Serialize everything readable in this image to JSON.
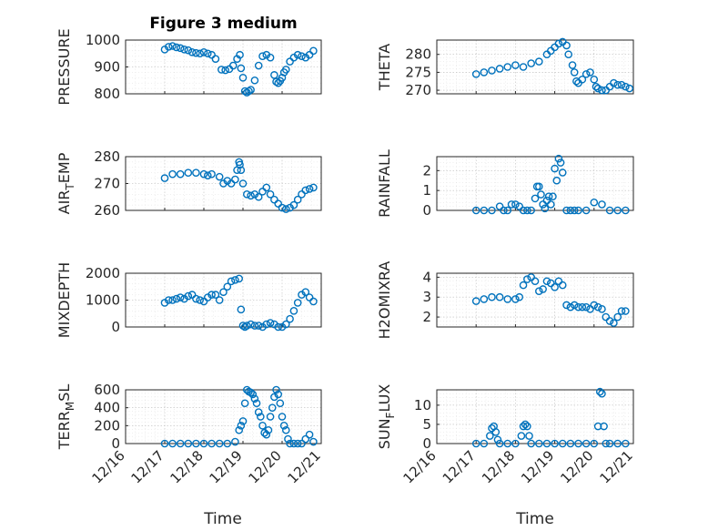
{
  "chart_data": [
    {
      "type": "scatter",
      "title": "Figure 3 medium",
      "ylabel": "PRESSURE",
      "ylim": [
        800,
        1000
      ],
      "yticks": [
        "800",
        "900",
        "1000"
      ],
      "xlim": [
        "12/16",
        "12/21"
      ],
      "x": [
        17.0,
        17.1,
        17.2,
        17.3,
        17.4,
        17.5,
        17.6,
        17.7,
        17.8,
        17.9,
        18.0,
        18.1,
        18.2,
        18.3,
        18.45,
        18.55,
        18.65,
        18.75,
        18.85,
        18.92,
        18.95,
        19.0,
        19.05,
        19.1,
        19.15,
        19.2,
        19.3,
        19.4,
        19.5,
        19.6,
        19.7,
        19.8,
        19.85,
        19.9,
        19.95,
        20.0,
        20.05,
        20.1,
        20.2,
        20.3,
        20.4,
        20.5,
        20.6,
        20.7,
        20.8
      ],
      "y": [
        965,
        975,
        978,
        973,
        970,
        965,
        962,
        955,
        952,
        950,
        955,
        950,
        945,
        930,
        890,
        888,
        892,
        905,
        930,
        945,
        895,
        860,
        810,
        805,
        810,
        815,
        850,
        905,
        940,
        945,
        935,
        870,
        845,
        840,
        848,
        860,
        880,
        890,
        920,
        935,
        945,
        940,
        935,
        945,
        960
      ]
    },
    {
      "type": "scatter",
      "ylabel": "THETA",
      "ylim": [
        269,
        284
      ],
      "yticks": [
        "270",
        "275",
        "280"
      ],
      "xlim": [
        "12/16",
        "12/21"
      ],
      "x": [
        17.0,
        17.2,
        17.4,
        17.6,
        17.8,
        18.0,
        18.2,
        18.4,
        18.6,
        18.8,
        18.9,
        19.0,
        19.1,
        19.2,
        19.3,
        19.35,
        19.45,
        19.5,
        19.55,
        19.6,
        19.7,
        19.8,
        19.9,
        20.0,
        20.05,
        20.1,
        20.2,
        20.3,
        20.4,
        20.5,
        20.6,
        20.7,
        20.8,
        20.9
      ],
      "y": [
        274.5,
        275,
        275.5,
        276,
        276.5,
        277,
        276.5,
        277.5,
        278,
        280,
        281,
        282,
        283,
        283.5,
        282.5,
        280,
        277,
        275,
        272.5,
        272,
        273,
        274.5,
        275,
        273,
        271,
        270.5,
        270,
        270,
        271,
        272,
        271.5,
        271.5,
        271,
        270.5
      ]
    },
    {
      "type": "scatter",
      "ylabel": "AIR_TEMP",
      "ylim": [
        260,
        280
      ],
      "yticks": [
        "260",
        "270",
        "280"
      ],
      "xlim": [
        "12/16",
        "12/21"
      ],
      "x": [
        17.0,
        17.2,
        17.4,
        17.6,
        17.8,
        18.0,
        18.1,
        18.2,
        18.4,
        18.5,
        18.6,
        18.7,
        18.8,
        18.85,
        18.9,
        18.92,
        18.95,
        19.0,
        19.1,
        19.2,
        19.3,
        19.4,
        19.5,
        19.6,
        19.7,
        19.8,
        19.9,
        20.0,
        20.1,
        20.2,
        20.3,
        20.4,
        20.5,
        20.6,
        20.7,
        20.8
      ],
      "y": [
        272,
        273.5,
        273.5,
        274,
        274,
        273.5,
        273,
        273.5,
        272.5,
        270,
        271,
        270,
        271.5,
        275,
        278,
        277,
        275,
        270,
        266,
        265.5,
        266,
        265,
        267,
        268.5,
        266,
        264,
        262.5,
        261,
        260.5,
        261,
        262,
        264,
        266,
        267.5,
        268,
        268.5
      ]
    },
    {
      "type": "scatter",
      "ylabel": "RAINFALL",
      "ylim": [
        0,
        2.7
      ],
      "yticks": [
        "0",
        "1",
        "2"
      ],
      "xlim": [
        "12/16",
        "12/21"
      ],
      "x": [
        17.0,
        17.2,
        17.4,
        17.6,
        17.7,
        17.8,
        17.9,
        18.0,
        18.1,
        18.2,
        18.3,
        18.4,
        18.5,
        18.55,
        18.6,
        18.65,
        18.7,
        18.75,
        18.8,
        18.85,
        18.9,
        18.95,
        19.0,
        19.05,
        19.1,
        19.15,
        19.2,
        19.3,
        19.4,
        19.5,
        19.6,
        19.8,
        20.0,
        20.2,
        20.4,
        20.6,
        20.8
      ],
      "y": [
        0,
        0,
        0,
        0.2,
        0,
        0,
        0.3,
        0.3,
        0.2,
        0,
        0,
        0,
        0.6,
        1.2,
        1.2,
        0.8,
        0.3,
        0.1,
        0.5,
        0.7,
        0.3,
        0.7,
        2.1,
        1.5,
        2.6,
        2.4,
        1.9,
        0,
        0,
        0,
        0,
        0,
        0.4,
        0.3,
        0,
        0,
        0
      ]
    },
    {
      "type": "scatter",
      "ylabel": "MIXDEPTH",
      "ylim": [
        0,
        2000
      ],
      "yticks": [
        "0",
        "1000",
        "2000"
      ],
      "xlim": [
        "12/16",
        "12/21"
      ],
      "x": [
        17.0,
        17.1,
        17.2,
        17.3,
        17.4,
        17.5,
        17.6,
        17.7,
        17.8,
        17.9,
        18.0,
        18.1,
        18.2,
        18.3,
        18.4,
        18.5,
        18.6,
        18.7,
        18.8,
        18.9,
        18.95,
        19.0,
        19.05,
        19.1,
        19.2,
        19.3,
        19.4,
        19.5,
        19.6,
        19.7,
        19.8,
        19.9,
        20.0,
        20.1,
        20.2,
        20.3,
        20.4,
        20.5,
        20.6,
        20.7,
        20.8
      ],
      "y": [
        900,
        1000,
        1000,
        1050,
        1100,
        1050,
        1150,
        1200,
        1050,
        1000,
        950,
        1100,
        1200,
        1200,
        1000,
        1300,
        1500,
        1700,
        1750,
        1800,
        650,
        50,
        0,
        50,
        100,
        50,
        50,
        0,
        100,
        150,
        100,
        0,
        0,
        100,
        300,
        600,
        900,
        1200,
        1300,
        1100,
        950
      ]
    },
    {
      "type": "scatter",
      "ylabel": "H2OMIXRA",
      "ylim": [
        1.5,
        4.2
      ],
      "yticks": [
        "2",
        "3",
        "4"
      ],
      "xlim": [
        "12/16",
        "12/21"
      ],
      "x": [
        17.0,
        17.2,
        17.4,
        17.6,
        17.8,
        18.0,
        18.1,
        18.2,
        18.3,
        18.4,
        18.5,
        18.6,
        18.7,
        18.8,
        18.9,
        19.0,
        19.1,
        19.2,
        19.3,
        19.4,
        19.5,
        19.6,
        19.7,
        19.8,
        19.9,
        20.0,
        20.1,
        20.2,
        20.3,
        20.4,
        20.5,
        20.6,
        20.7,
        20.8
      ],
      "y": [
        2.8,
        2.9,
        3.0,
        3.0,
        2.9,
        2.9,
        3.0,
        3.6,
        3.9,
        4.0,
        3.8,
        3.3,
        3.4,
        3.8,
        3.7,
        3.5,
        3.8,
        3.6,
        2.6,
        2.5,
        2.6,
        2.5,
        2.5,
        2.5,
        2.4,
        2.6,
        2.5,
        2.4,
        2.0,
        1.8,
        1.7,
        2.0,
        2.3,
        2.3
      ]
    },
    {
      "type": "scatter",
      "ylabel": "TERR_MSL",
      "ylim": [
        0,
        600
      ],
      "yticks": [
        "0",
        "200",
        "400",
        "600"
      ],
      "xlim": [
        "12/16",
        "12/21"
      ],
      "x": [
        17.0,
        17.2,
        17.4,
        17.6,
        17.8,
        18.0,
        18.2,
        18.4,
        18.6,
        18.8,
        18.9,
        18.95,
        19.0,
        19.05,
        19.1,
        19.15,
        19.2,
        19.25,
        19.3,
        19.35,
        19.4,
        19.45,
        19.5,
        19.55,
        19.6,
        19.65,
        19.7,
        19.75,
        19.8,
        19.85,
        19.9,
        19.95,
        20.0,
        20.05,
        20.1,
        20.15,
        20.2,
        20.3,
        20.4,
        20.5,
        20.6,
        20.7,
        20.8
      ],
      "y": [
        0,
        0,
        0,
        0,
        0,
        0,
        0,
        0,
        0,
        20,
        150,
        200,
        250,
        450,
        600,
        580,
        570,
        550,
        500,
        450,
        350,
        300,
        200,
        120,
        100,
        150,
        300,
        400,
        520,
        600,
        550,
        450,
        300,
        200,
        150,
        50,
        0,
        0,
        0,
        0,
        50,
        100,
        20
      ]
    },
    {
      "type": "scatter",
      "ylabel": "SUN_FLUX",
      "ylim": [
        0,
        14
      ],
      "yticks": [
        "0",
        "5",
        "10"
      ],
      "xlim": [
        "12/16",
        "12/21"
      ],
      "x": [
        17.0,
        17.2,
        17.35,
        17.4,
        17.45,
        17.5,
        17.55,
        17.6,
        17.8,
        18.0,
        18.15,
        18.2,
        18.25,
        18.3,
        18.35,
        18.4,
        18.6,
        18.8,
        19.0,
        19.2,
        19.4,
        19.6,
        19.8,
        20.0,
        20.1,
        20.15,
        20.2,
        20.25,
        20.3,
        20.4,
        20.6,
        20.8
      ],
      "y": [
        0,
        0,
        2,
        4,
        4.5,
        3,
        1,
        0,
        0,
        0,
        2,
        4.5,
        5,
        4.5,
        2,
        0,
        0,
        0,
        0,
        0,
        0,
        0,
        0,
        0,
        4.5,
        13.5,
        13,
        4.5,
        0,
        0,
        0,
        0
      ]
    }
  ],
  "axes_labels": {
    "xtick_labels": [
      "12/16",
      "12/17",
      "12/18",
      "12/19",
      "12/20",
      "12/21"
    ],
    "left_xlabel": "Time",
    "right_xlabel": "Time"
  },
  "colors": {
    "marker": "#0072bd",
    "axis": "#262626"
  }
}
